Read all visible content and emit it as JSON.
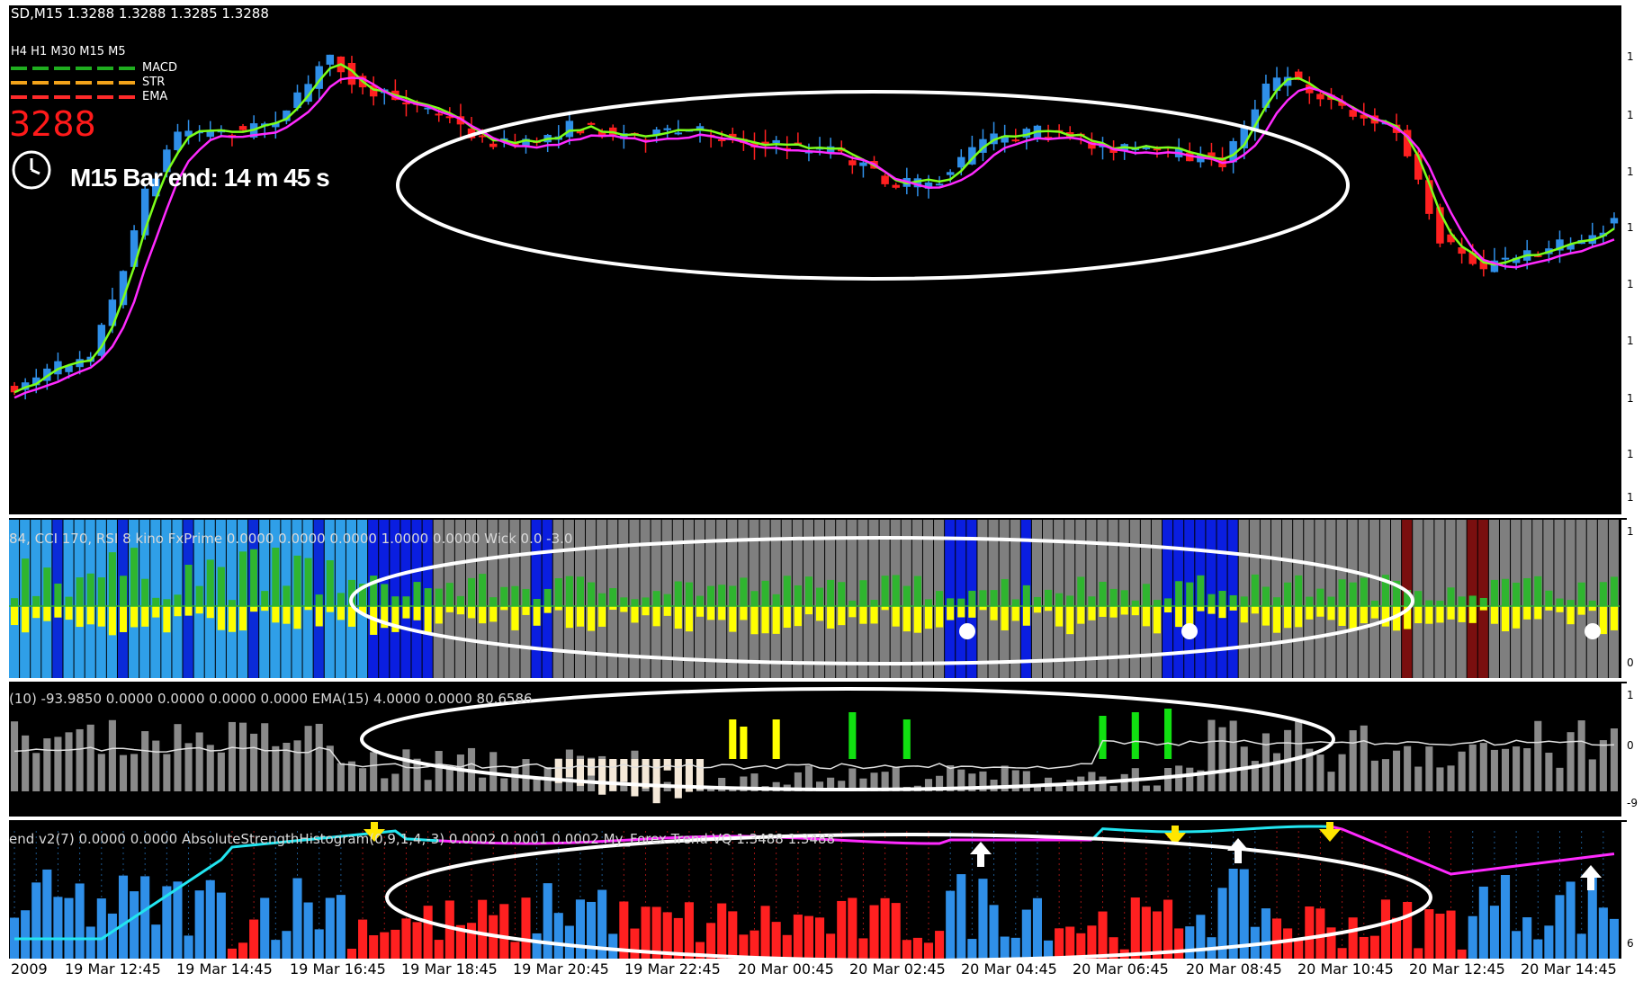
{
  "window": {
    "header": "SD,M15  1.3288 1.3288 1.3285 1.3288",
    "timeframes": "H4  H1 M30 M15 M5",
    "legend": [
      "MACD",
      "STR",
      "EMA"
    ],
    "legend_colors": [
      "#1fae1f",
      "#f2a31a",
      "#ff2a2a"
    ],
    "big_price": "3288",
    "big_price_color": "#ff1a1a",
    "bar_end_text": "M15 Bar end: 14 m 45 s",
    "clock_icon": "clock-icon"
  },
  "panel1": {
    "header": "84, CCI 170, RSI 8   kino FxPrime  0.0000 0.0000 0.0000 1.0000 0.0000  Wick 0.0 -3.0",
    "axis_top": "1",
    "axis_bottom": "0"
  },
  "panel2": {
    "header": "(10) -93.9850 0.0000 0.0000 0.0000 0.0000   EMA(15) 4.0000 0.0000 80.6586",
    "axis_top": "1",
    "axis_mid": "0",
    "axis_bottom": "-9"
  },
  "panel3": {
    "header": "end v2(7) 0.0000 0.0000  AbsoluteStrengthHistogram(0,9,1,4,-3) 0.0002 0.0001 0.0002  My_Forex Trend  VQ  1.3488 1.3488",
    "axis_bottom": "6"
  },
  "price_axis_labels": [
    "1",
    "1",
    "1",
    "1",
    "1",
    "1",
    "1",
    "1",
    "1"
  ],
  "time_axis": [
    "2009",
    "19 Mar 12:45",
    "19 Mar 14:45",
    "19 Mar 16:45",
    "19 Mar 18:45",
    "19 Mar 20:45",
    "19 Mar 22:45",
    "20 Mar 00:45",
    "20 Mar 02:45",
    "20 Mar 04:45",
    "20 Mar 06:45",
    "20 Mar 08:45",
    "20 Mar 10:45",
    "20 Mar 12:45",
    "20 Mar 14:45"
  ],
  "colors": {
    "bull": "#2f8fe8",
    "bear": "#ff2020",
    "ma_fast": "#7cff1a",
    "ma_slow": "#ff2aff",
    "annotation": "#ffffff"
  }
}
